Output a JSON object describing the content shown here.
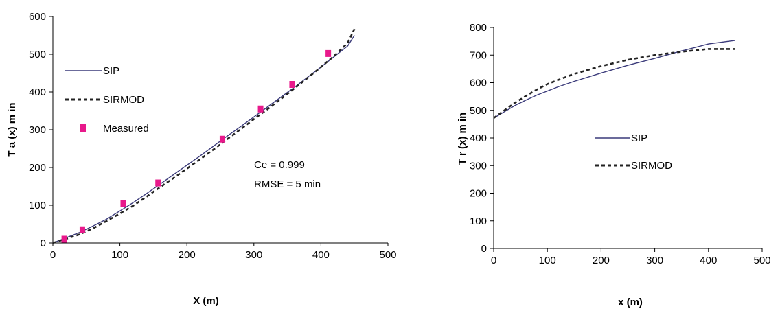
{
  "chart_data": [
    {
      "type": "line",
      "title": "",
      "xlabel": "X (m)",
      "ylabel": "T a  (x)  m in",
      "xlim": [
        0,
        500
      ],
      "ylim": [
        0,
        600
      ],
      "xticks": [
        "0",
        "100",
        "200",
        "300",
        "400",
        "500"
      ],
      "yticks": [
        "0",
        "100",
        "200",
        "300",
        "400",
        "500",
        "600"
      ],
      "grid": false,
      "legend_position": "top-left",
      "series": [
        {
          "name": "SIP",
          "style": "solid",
          "color": "#3a3a7a",
          "points": [
            [
              0,
              0
            ],
            [
              20,
              14
            ],
            [
              40,
              28
            ],
            [
              60,
              45
            ],
            [
              80,
              63
            ],
            [
              100,
              85
            ],
            [
              120,
              107
            ],
            [
              140,
              131
            ],
            [
              160,
              156
            ],
            [
              180,
              181
            ],
            [
              200,
              206
            ],
            [
              220,
              231
            ],
            [
              240,
              257
            ],
            [
              260,
              283
            ],
            [
              280,
              308
            ],
            [
              300,
              334
            ],
            [
              320,
              360
            ],
            [
              340,
              386
            ],
            [
              360,
              412
            ],
            [
              380,
              439
            ],
            [
              400,
              466
            ],
            [
              420,
              494
            ],
            [
              440,
              522
            ],
            [
              450,
              550
            ]
          ]
        },
        {
          "name": "SIRMOD",
          "style": "dashed",
          "color": "#222222",
          "points": [
            [
              0,
              0
            ],
            [
              20,
              11
            ],
            [
              40,
              23
            ],
            [
              60,
              39
            ],
            [
              80,
              58
            ],
            [
              100,
              78
            ],
            [
              120,
              99
            ],
            [
              140,
              123
            ],
            [
              160,
              148
            ],
            [
              180,
              172
            ],
            [
              200,
              197
            ],
            [
              220,
              222
            ],
            [
              240,
              248
            ],
            [
              260,
              275
            ],
            [
              280,
              301
            ],
            [
              300,
              328
            ],
            [
              320,
              354
            ],
            [
              340,
              381
            ],
            [
              360,
              409
            ],
            [
              380,
              437
            ],
            [
              400,
              466
            ],
            [
              420,
              496
            ],
            [
              440,
              530
            ],
            [
              450,
              567
            ]
          ]
        },
        {
          "name": "Measured",
          "style": "marker",
          "color": "#e8198b",
          "points": [
            [
              17,
              10
            ],
            [
              44,
              35
            ],
            [
              105,
              104
            ],
            [
              157,
              159
            ],
            [
              253,
              275
            ],
            [
              310,
              355
            ],
            [
              357,
              420
            ],
            [
              411,
              502
            ]
          ]
        }
      ],
      "annotations": [
        "Ce = 0.999",
        "RMSE = 5 min"
      ]
    },
    {
      "type": "line",
      "title": "",
      "xlabel": "x (m)",
      "ylabel": "T r  (x)  m in",
      "xlim": [
        0,
        500
      ],
      "ylim": [
        0,
        800
      ],
      "xticks": [
        "0",
        "100",
        "200",
        "300",
        "400",
        "500"
      ],
      "yticks": [
        "0",
        "100",
        "200",
        "300",
        "400",
        "500",
        "600",
        "700",
        "800"
      ],
      "grid": false,
      "legend_position": "center-right",
      "series": [
        {
          "name": "SIP",
          "style": "solid",
          "color": "#3a3a7a",
          "points": [
            [
              0,
              472
            ],
            [
              20,
              495
            ],
            [
              40,
              518
            ],
            [
              60,
              537
            ],
            [
              80,
              555
            ],
            [
              100,
              570
            ],
            [
              120,
              585
            ],
            [
              150,
              605
            ],
            [
              200,
              635
            ],
            [
              250,
              663
            ],
            [
              300,
              688
            ],
            [
              350,
              715
            ],
            [
              400,
              740
            ],
            [
              450,
              753
            ]
          ]
        },
        {
          "name": "SIRMOD",
          "style": "dashed",
          "color": "#222222",
          "points": [
            [
              0,
              472
            ],
            [
              20,
              500
            ],
            [
              40,
              528
            ],
            [
              60,
              552
            ],
            [
              80,
              575
            ],
            [
              100,
              595
            ],
            [
              120,
              610
            ],
            [
              150,
              632
            ],
            [
              200,
              660
            ],
            [
              250,
              683
            ],
            [
              300,
              700
            ],
            [
              350,
              712
            ],
            [
              400,
              722
            ],
            [
              450,
              722
            ]
          ]
        }
      ]
    }
  ]
}
